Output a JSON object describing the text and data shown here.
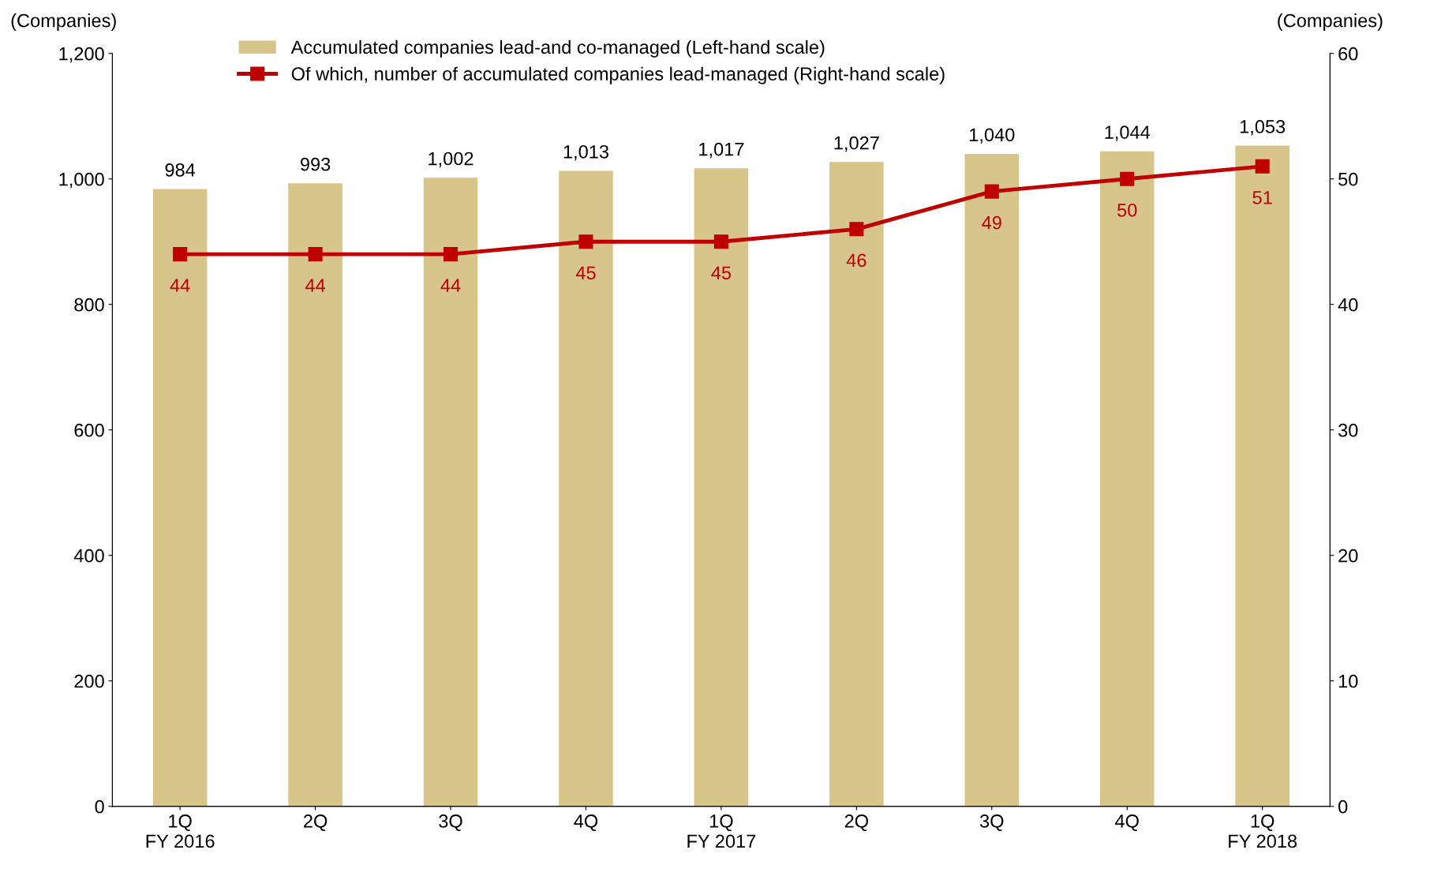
{
  "chart_data": {
    "type": "bar",
    "ylabel": "(Companies)",
    "y2label": "(Companies)",
    "categories": [
      "1Q\nFY 2016",
      "2Q",
      "3Q",
      "4Q",
      "1Q\nFY 2017",
      "2Q",
      "3Q",
      "4Q",
      "1Q\nFY 2018"
    ],
    "series": [
      {
        "name": "Accumulated companies lead-and co-managed (Left-hand scale)",
        "color": "#d8c58a",
        "values": [
          984,
          993,
          1002,
          1013,
          1017,
          1027,
          1040,
          1044,
          1053
        ],
        "value_labels": [
          "984",
          "993",
          "1,002",
          "1,013",
          "1,017",
          "1,027",
          "1,040",
          "1,044",
          "1,053"
        ]
      },
      {
        "name": "Of which, number of accumulated companies lead-managed (Right-hand scale)",
        "type": "line",
        "axis": "y2",
        "color": "#c00000",
        "marker": "square",
        "line_style": "solid",
        "values": [
          44,
          44,
          44,
          45,
          45,
          46,
          49,
          50,
          51
        ],
        "value_labels": [
          "44",
          "44",
          "44",
          "45",
          "45",
          "46",
          "49",
          "50",
          "51"
        ]
      }
    ],
    "ylim": [
      0,
      1200
    ],
    "yticks": [
      0,
      {
        "value": 200,
        "label": "200"
      },
      {
        "value": 400,
        "label": "400"
      },
      {
        "value": 600,
        "label": "600"
      },
      {
        "value": 800,
        "label": "800"
      },
      {
        "value": 1000,
        "label": "1,000"
      },
      {
        "value": 1200,
        "label": "1,200"
      }
    ],
    "y2lim": [
      0,
      60
    ],
    "y2ticks": [
      0,
      10,
      20,
      30,
      40,
      50,
      60
    ],
    "legend": "top left",
    "grid": false
  }
}
